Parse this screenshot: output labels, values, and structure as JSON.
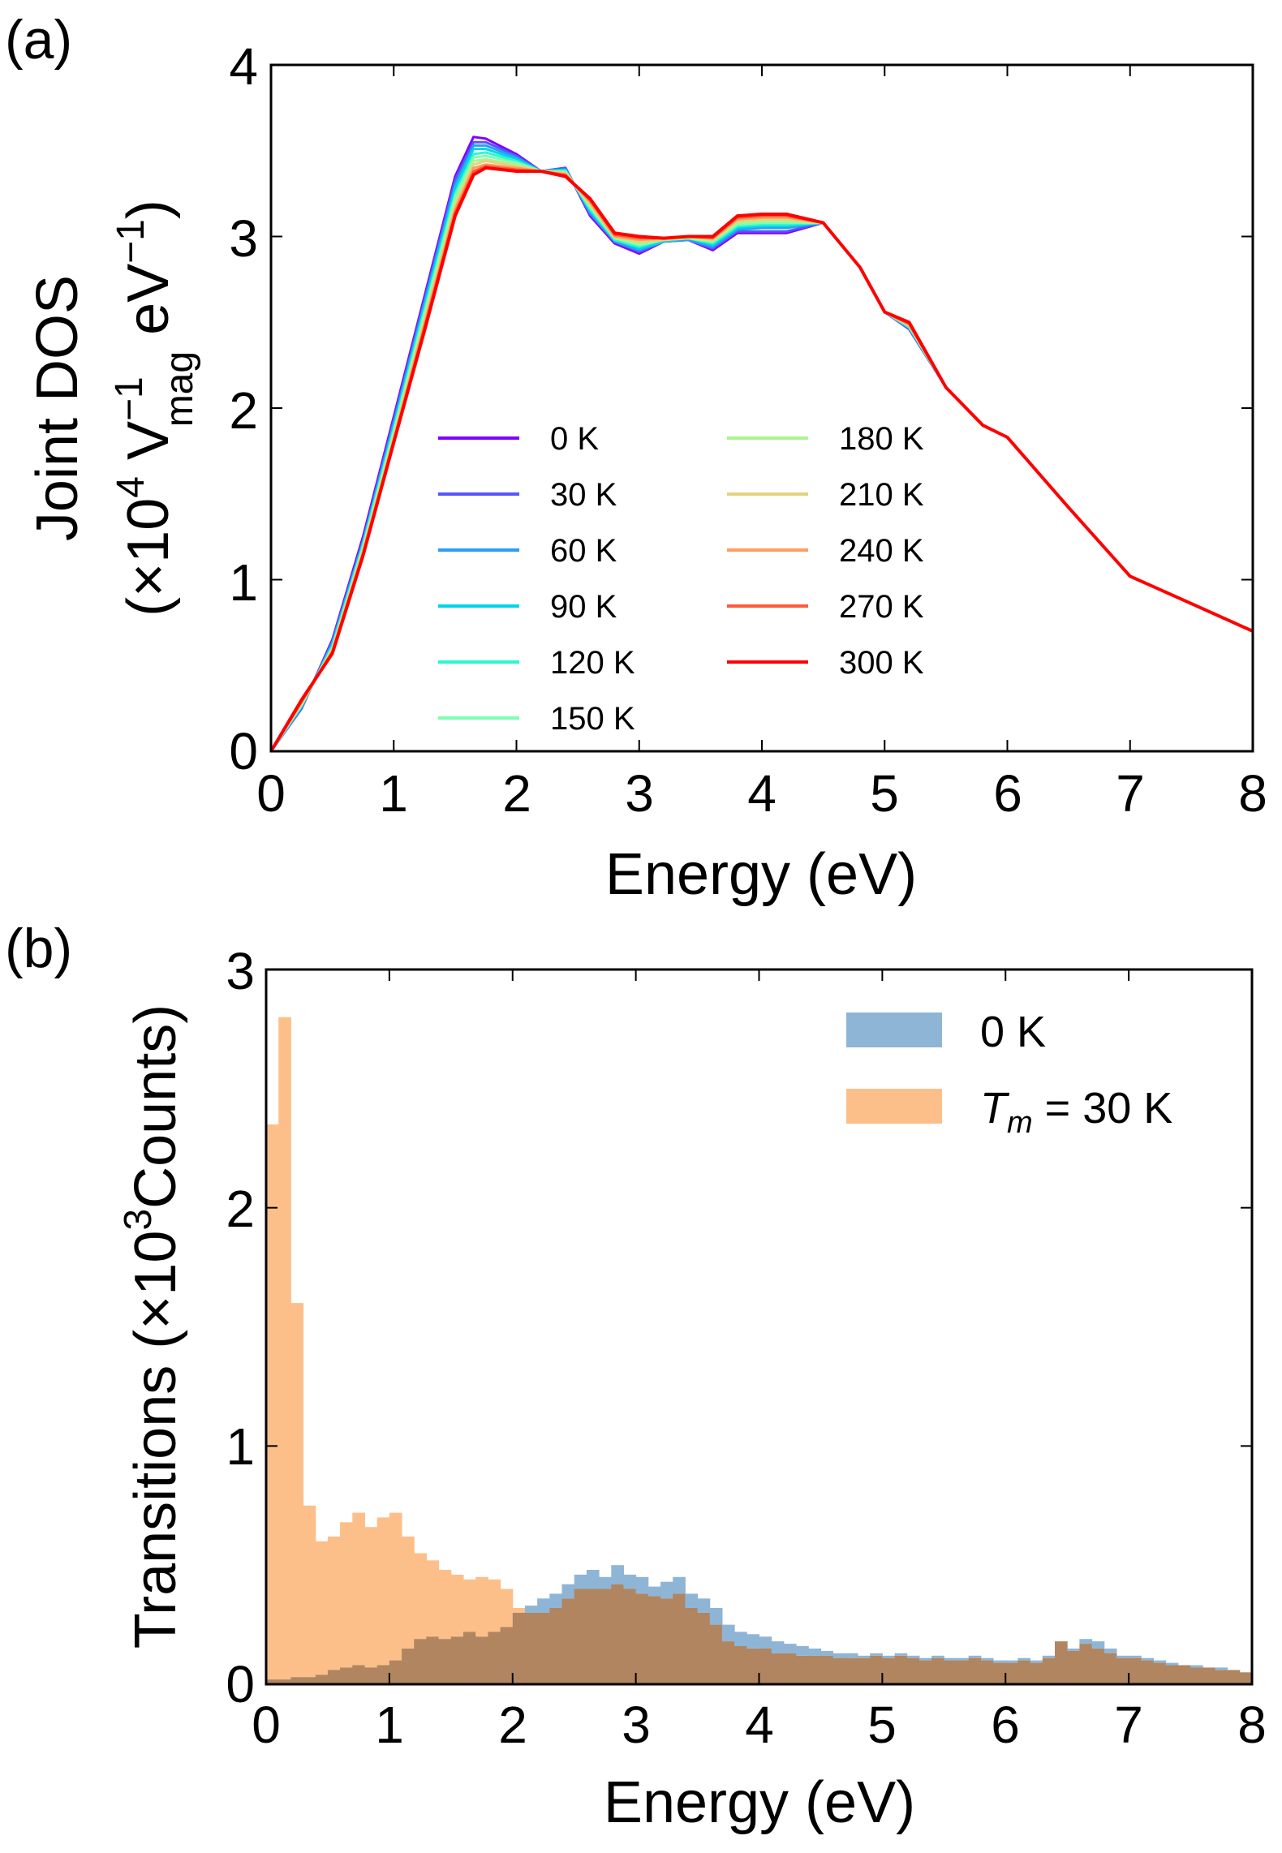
{
  "figure": {
    "panel_a_letter": "(a)",
    "panel_b_letter": "(b)"
  },
  "chart_data": [
    {
      "type": "line",
      "panel": "(a)",
      "xlabel": "Energy (eV)",
      "ylabel_line1": "Joint DOS",
      "ylabel_unit_prefix": "(×10",
      "ylabel_unit_exp": "4",
      "ylabel_unit_v": " V",
      "ylabel_unit_sup": "−1",
      "ylabel_unit_sub": "mag",
      "ylabel_unit_rest": " eV",
      "ylabel_unit_sup2": "−1",
      "ylabel_unit_close": ")",
      "xlim": [
        0,
        8
      ],
      "ylim": [
        0,
        4
      ],
      "xticks": [
        "0",
        "1",
        "2",
        "3",
        "4",
        "5",
        "6",
        "7",
        "8"
      ],
      "yticks": [
        "0",
        "1",
        "2",
        "3",
        "4"
      ],
      "legend_columns": 2,
      "legend_location": "center",
      "x": [
        0,
        0.25,
        0.5,
        0.75,
        1.0,
        1.25,
        1.5,
        1.65,
        1.75,
        2.0,
        2.2,
        2.4,
        2.6,
        2.8,
        3.0,
        3.2,
        3.4,
        3.6,
        3.8,
        4.0,
        4.2,
        4.5,
        4.8,
        5.0,
        5.2,
        5.5,
        5.8,
        6.0,
        6.5,
        7.0,
        7.5,
        8.0
      ],
      "series": [
        {
          "name": "0 K",
          "color": "#8000ff",
          "values": [
            0.0,
            0.25,
            0.65,
            1.25,
            1.95,
            2.65,
            3.35,
            3.58,
            3.57,
            3.48,
            3.38,
            3.4,
            3.12,
            2.96,
            2.9,
            2.97,
            2.98,
            2.92,
            3.02,
            3.02,
            3.02,
            3.08,
            2.82,
            2.56,
            2.46,
            2.12,
            1.9,
            1.83,
            1.42,
            1.02,
            0.86,
            0.7
          ]
        },
        {
          "name": "30 K",
          "color": "#5556fc",
          "values": [
            0.0,
            0.25,
            0.64,
            1.23,
            1.93,
            2.63,
            3.33,
            3.55,
            3.55,
            3.47,
            3.38,
            3.4,
            3.13,
            2.97,
            2.91,
            2.97,
            2.98,
            2.93,
            3.03,
            3.03,
            3.03,
            3.08,
            2.82,
            2.56,
            2.46,
            2.12,
            1.9,
            1.83,
            1.42,
            1.02,
            0.86,
            0.7
          ]
        },
        {
          "name": "60 K",
          "color": "#2a9df5",
          "values": [
            0.0,
            0.26,
            0.63,
            1.22,
            1.91,
            2.61,
            3.3,
            3.53,
            3.53,
            3.46,
            3.38,
            3.39,
            3.14,
            2.97,
            2.92,
            2.97,
            2.98,
            2.94,
            3.04,
            3.05,
            3.05,
            3.08,
            2.82,
            2.56,
            2.47,
            2.12,
            1.9,
            1.83,
            1.42,
            1.02,
            0.86,
            0.7
          ]
        },
        {
          "name": "90 K",
          "color": "#00d4e7",
          "values": [
            0.0,
            0.26,
            0.62,
            1.21,
            1.89,
            2.59,
            3.28,
            3.51,
            3.51,
            3.45,
            3.38,
            3.39,
            3.15,
            2.98,
            2.93,
            2.97,
            2.99,
            2.95,
            3.05,
            3.06,
            3.06,
            3.08,
            2.82,
            2.56,
            2.47,
            2.12,
            1.9,
            1.83,
            1.42,
            1.02,
            0.86,
            0.7
          ]
        },
        {
          "name": "120 K",
          "color": "#2af8d0",
          "values": [
            0.0,
            0.27,
            0.61,
            1.2,
            1.88,
            2.57,
            3.25,
            3.48,
            3.49,
            3.44,
            3.38,
            3.38,
            3.16,
            2.98,
            2.94,
            2.98,
            2.99,
            2.96,
            3.06,
            3.07,
            3.07,
            3.08,
            2.82,
            2.56,
            2.47,
            2.12,
            1.9,
            1.83,
            1.42,
            1.02,
            0.86,
            0.7
          ]
        },
        {
          "name": "150 K",
          "color": "#7ffeb3",
          "values": [
            0.0,
            0.27,
            0.6,
            1.19,
            1.86,
            2.55,
            3.23,
            3.46,
            3.47,
            3.43,
            3.38,
            3.38,
            3.17,
            2.99,
            2.95,
            2.98,
            2.99,
            2.97,
            3.07,
            3.08,
            3.08,
            3.08,
            2.82,
            2.56,
            2.48,
            2.12,
            1.9,
            1.83,
            1.42,
            1.02,
            0.86,
            0.7
          ]
        },
        {
          "name": "180 K",
          "color": "#aaf590",
          "values": [
            0.0,
            0.28,
            0.6,
            1.18,
            1.85,
            2.53,
            3.2,
            3.44,
            3.45,
            3.42,
            3.38,
            3.37,
            3.18,
            2.99,
            2.96,
            2.98,
            2.99,
            2.97,
            3.08,
            3.09,
            3.09,
            3.08,
            2.82,
            2.56,
            2.48,
            2.12,
            1.9,
            1.83,
            1.42,
            1.02,
            0.86,
            0.7
          ]
        },
        {
          "name": "210 K",
          "color": "#e5d27c",
          "values": [
            0.0,
            0.28,
            0.59,
            1.17,
            1.83,
            2.51,
            3.18,
            3.42,
            3.44,
            3.41,
            3.38,
            3.37,
            3.19,
            3.0,
            2.97,
            2.98,
            3.0,
            2.98,
            3.09,
            3.1,
            3.1,
            3.08,
            2.82,
            2.56,
            2.48,
            2.12,
            1.9,
            1.83,
            1.42,
            1.02,
            0.86,
            0.7
          ]
        },
        {
          "name": "240 K",
          "color": "#ff9e60",
          "values": [
            0.0,
            0.29,
            0.58,
            1.16,
            1.82,
            2.49,
            3.16,
            3.4,
            3.42,
            3.4,
            3.38,
            3.36,
            3.2,
            3.0,
            2.98,
            2.99,
            3.0,
            2.99,
            3.1,
            3.11,
            3.11,
            3.08,
            2.82,
            2.56,
            2.49,
            2.12,
            1.9,
            1.83,
            1.42,
            1.02,
            0.86,
            0.7
          ]
        },
        {
          "name": "270 K",
          "color": "#ff5a3a",
          "values": [
            0.0,
            0.29,
            0.58,
            1.15,
            1.81,
            2.47,
            3.14,
            3.38,
            3.41,
            3.39,
            3.38,
            3.36,
            3.21,
            3.01,
            2.99,
            2.99,
            3.0,
            2.99,
            3.11,
            3.12,
            3.12,
            3.08,
            2.82,
            2.56,
            2.49,
            2.12,
            1.9,
            1.83,
            1.42,
            1.02,
            0.86,
            0.7
          ]
        },
        {
          "name": "300 K",
          "color": "#ff0000",
          "values": [
            0.0,
            0.3,
            0.57,
            1.14,
            1.8,
            2.45,
            3.12,
            3.36,
            3.4,
            3.38,
            3.38,
            3.35,
            3.22,
            3.02,
            3.0,
            2.99,
            3.0,
            3.0,
            3.12,
            3.13,
            3.13,
            3.08,
            2.82,
            2.56,
            2.5,
            2.12,
            1.9,
            1.83,
            1.42,
            1.02,
            0.86,
            0.7
          ]
        }
      ]
    },
    {
      "type": "bar",
      "panel": "(b)",
      "subtype": "histogram",
      "xlabel": "Energy (eV)",
      "ylabel_prefix": "Transitions (×10",
      "ylabel_exp": "3",
      "ylabel_suffix": "Counts)",
      "xlim": [
        0,
        8
      ],
      "ylim": [
        0,
        3
      ],
      "xticks": [
        "0",
        "1",
        "2",
        "3",
        "4",
        "5",
        "6",
        "7",
        "8"
      ],
      "yticks": [
        "0",
        "1",
        "2",
        "3"
      ],
      "legend_location": "top-right",
      "bin_width": 0.1,
      "bin_starts": [
        0.0,
        0.1,
        0.2,
        0.3,
        0.4,
        0.5,
        0.6,
        0.7,
        0.8,
        0.9,
        1.0,
        1.1,
        1.2,
        1.3,
        1.4,
        1.5,
        1.6,
        1.7,
        1.8,
        1.9,
        2.0,
        2.1,
        2.2,
        2.3,
        2.4,
        2.5,
        2.6,
        2.7,
        2.8,
        2.9,
        3.0,
        3.1,
        3.2,
        3.3,
        3.4,
        3.5,
        3.6,
        3.7,
        3.8,
        3.9,
        4.0,
        4.1,
        4.2,
        4.3,
        4.4,
        4.5,
        4.6,
        4.7,
        4.8,
        4.9,
        5.0,
        5.1,
        5.2,
        5.3,
        5.4,
        5.5,
        5.6,
        5.7,
        5.8,
        5.9,
        6.0,
        6.1,
        6.2,
        6.3,
        6.4,
        6.5,
        6.6,
        6.7,
        6.8,
        6.9,
        7.0,
        7.1,
        7.2,
        7.3,
        7.4,
        7.5,
        7.6,
        7.7,
        7.8,
        7.9
      ],
      "series": [
        {
          "name": "0 K",
          "color": "#8fb5d6",
          "values": [
            0.02,
            0.02,
            0.03,
            0.03,
            0.04,
            0.06,
            0.07,
            0.08,
            0.07,
            0.08,
            0.1,
            0.15,
            0.19,
            0.2,
            0.19,
            0.2,
            0.22,
            0.2,
            0.22,
            0.24,
            0.3,
            0.33,
            0.36,
            0.38,
            0.42,
            0.46,
            0.48,
            0.45,
            0.5,
            0.46,
            0.45,
            0.41,
            0.43,
            0.45,
            0.38,
            0.36,
            0.32,
            0.25,
            0.22,
            0.21,
            0.2,
            0.18,
            0.17,
            0.16,
            0.15,
            0.14,
            0.13,
            0.13,
            0.12,
            0.13,
            0.12,
            0.13,
            0.12,
            0.11,
            0.12,
            0.11,
            0.11,
            0.12,
            0.11,
            0.1,
            0.1,
            0.11,
            0.1,
            0.12,
            0.18,
            0.15,
            0.19,
            0.18,
            0.15,
            0.12,
            0.12,
            0.11,
            0.1,
            0.09,
            0.08,
            0.08,
            0.07,
            0.07,
            0.06,
            0.05
          ]
        },
        {
          "name": "T_m = 30 K",
          "color": "#fdbf8a",
          "values": [
            2.35,
            2.8,
            1.6,
            0.75,
            0.6,
            0.62,
            0.68,
            0.72,
            0.66,
            0.7,
            0.72,
            0.62,
            0.55,
            0.52,
            0.48,
            0.46,
            0.44,
            0.45,
            0.44,
            0.4,
            0.32,
            0.3,
            0.3,
            0.32,
            0.36,
            0.4,
            0.4,
            0.4,
            0.42,
            0.4,
            0.38,
            0.37,
            0.36,
            0.38,
            0.32,
            0.3,
            0.25,
            0.18,
            0.16,
            0.15,
            0.15,
            0.13,
            0.13,
            0.12,
            0.12,
            0.12,
            0.11,
            0.11,
            0.11,
            0.12,
            0.11,
            0.12,
            0.11,
            0.1,
            0.11,
            0.1,
            0.1,
            0.11,
            0.1,
            0.09,
            0.09,
            0.1,
            0.09,
            0.11,
            0.18,
            0.14,
            0.17,
            0.15,
            0.13,
            0.11,
            0.11,
            0.1,
            0.09,
            0.08,
            0.08,
            0.07,
            0.07,
            0.06,
            0.06,
            0.05
          ]
        }
      ],
      "legend": {
        "label_0": "0 K",
        "label_1_symbol": "T",
        "label_1_sub": "m",
        "label_1_rest": " = 30 K"
      }
    }
  ]
}
